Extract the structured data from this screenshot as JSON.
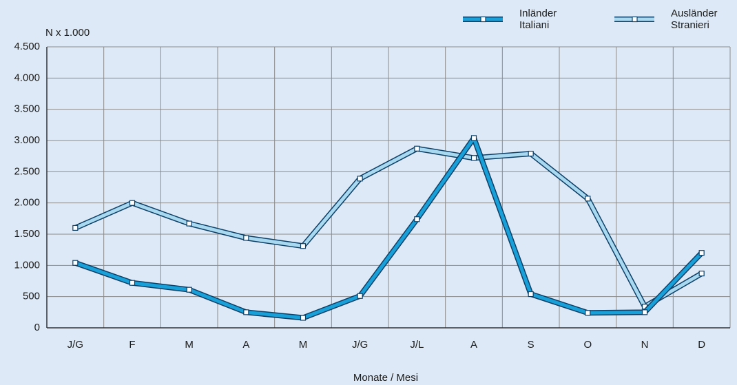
{
  "chart_data": {
    "type": "line",
    "y_label": "N x 1.000",
    "x_label": "Monate / Mesi",
    "categories": [
      "J/G",
      "F",
      "M",
      "A",
      "M",
      "J/G",
      "J/L",
      "A",
      "S",
      "O",
      "N",
      "D"
    ],
    "series": [
      {
        "name": "Inländer Italiani",
        "color": "#1aa0d8",
        "values": [
          1040,
          720,
          610,
          250,
          160,
          510,
          1740,
          3040,
          540,
          240,
          250,
          1200
        ]
      },
      {
        "name": "Ausländer Stranieri",
        "color": "#a9d9f0",
        "values": [
          1600,
          2000,
          1670,
          1440,
          1310,
          2390,
          2870,
          2720,
          2790,
          2070,
          340,
          870
        ]
      }
    ],
    "ylim": [
      0,
      4500
    ],
    "yticks": [
      0,
      500,
      {
        "value": 1000,
        "label": "1.000"
      },
      {
        "value": 1500,
        "label": "1.500"
      },
      {
        "value": 2000,
        "label": "2.000"
      },
      {
        "value": 2500,
        "label": "2.500"
      },
      {
        "value": 3000,
        "label": "3.000"
      },
      {
        "value": 3500,
        "label": "3.500"
      },
      {
        "value": 4000,
        "label": "4.000"
      },
      {
        "value": 4500,
        "label": "4.500"
      }
    ],
    "grid": true
  }
}
